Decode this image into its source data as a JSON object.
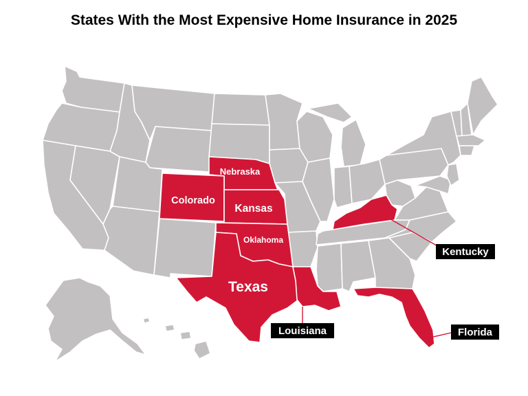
{
  "title": "States With the Most Expensive Home Insurance in 2025",
  "colors": {
    "highlight": "#d21736",
    "base": "#c2c0c0",
    "border": "#ffffff",
    "callout_bg": "#000000"
  },
  "highlighted_states": {
    "nebraska": "Nebraska",
    "colorado": "Colorado",
    "kansas": "Kansas",
    "oklahoma": "Oklahoma",
    "texas": "Texas",
    "louisiana": "Louisiana",
    "kentucky": "Kentucky",
    "florida": "Florida"
  }
}
